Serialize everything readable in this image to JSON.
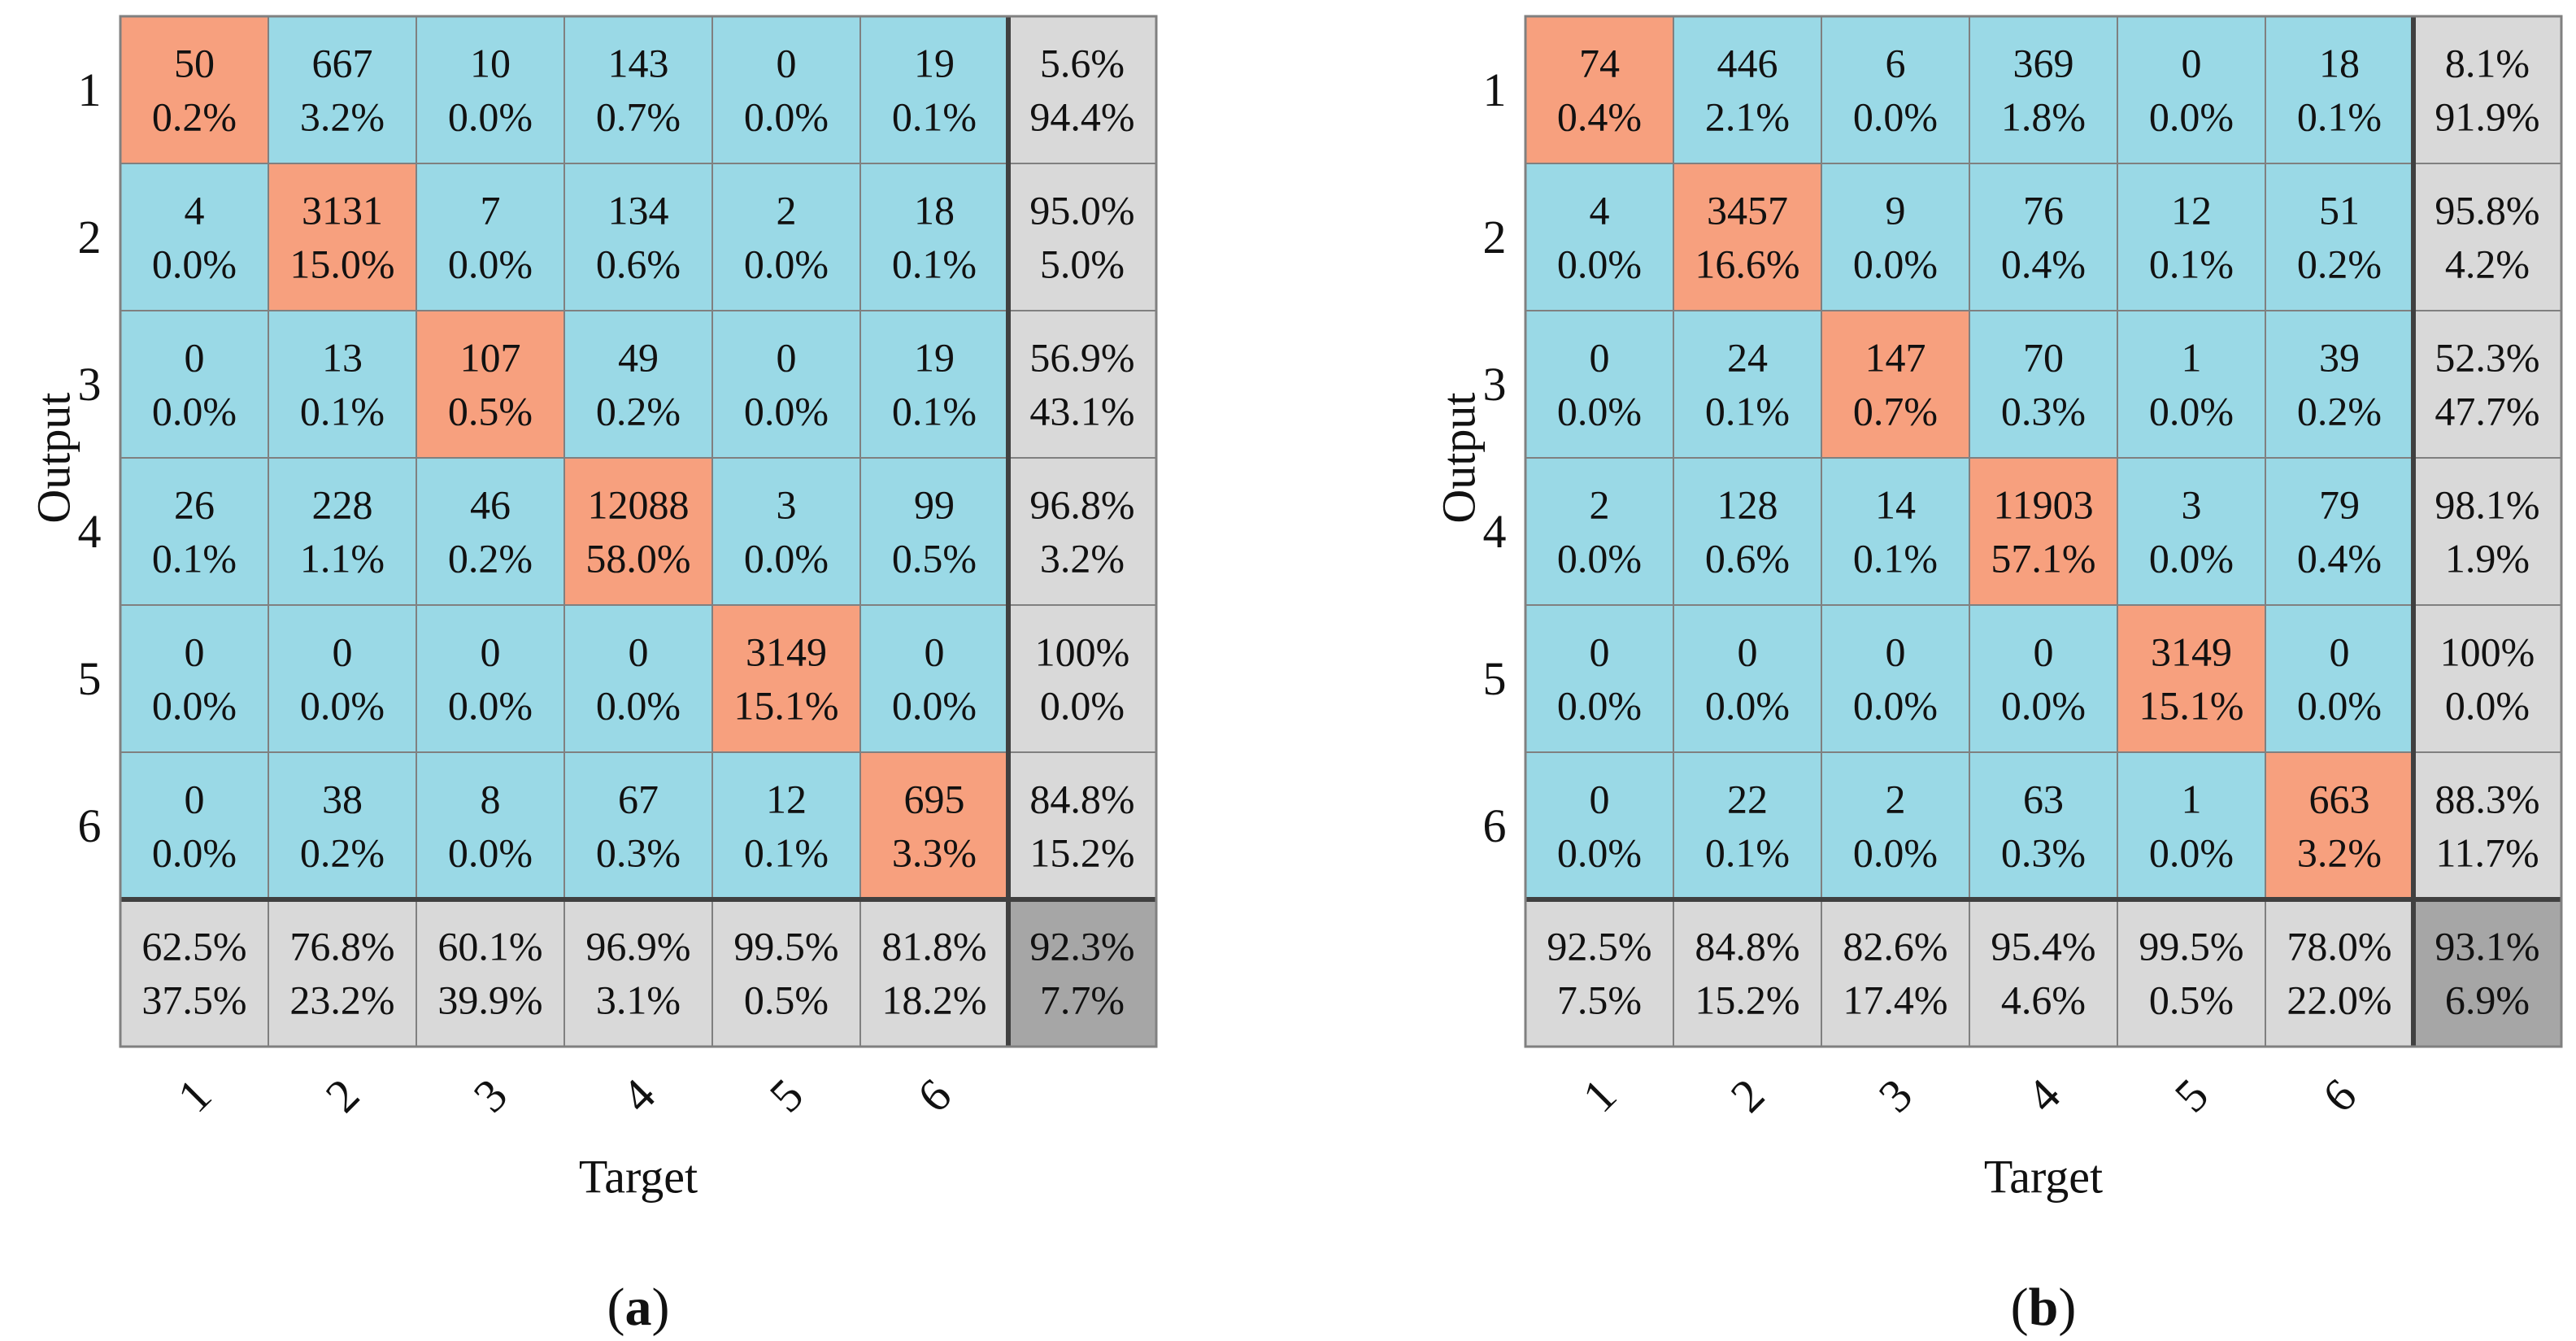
{
  "colors": {
    "diagonal": "#f7a07e",
    "off_diagonal": "#9ad9e6",
    "summary": "#d9d9d9",
    "overall": "#a6a6a6",
    "grid_line": "#808080",
    "thick_line": "#404040",
    "text": "#111111"
  },
  "chart_data": [
    {
      "type": "heatmap",
      "subtype": "confusion-matrix",
      "label": "(a)",
      "ylabel": "Output",
      "xlabel": "Target",
      "row_labels": [
        "1",
        "2",
        "3",
        "4",
        "5",
        "6"
      ],
      "col_labels": [
        "1",
        "2",
        "3",
        "4",
        "5",
        "6"
      ],
      "matrix": [
        [
          50,
          667,
          10,
          143,
          0,
          19
        ],
        [
          4,
          3131,
          7,
          134,
          2,
          18
        ],
        [
          0,
          13,
          107,
          49,
          0,
          19
        ],
        [
          26,
          228,
          46,
          12088,
          3,
          99
        ],
        [
          0,
          0,
          0,
          0,
          3149,
          0
        ],
        [
          0,
          38,
          8,
          67,
          12,
          695
        ]
      ],
      "matrix_percent": [
        [
          "0.2%",
          "3.2%",
          "0.0%",
          "0.7%",
          "0.0%",
          "0.1%"
        ],
        [
          "0.0%",
          "15.0%",
          "0.0%",
          "0.6%",
          "0.0%",
          "0.1%"
        ],
        [
          "0.0%",
          "0.1%",
          "0.5%",
          "0.2%",
          "0.0%",
          "0.1%"
        ],
        [
          "0.1%",
          "1.1%",
          "0.2%",
          "58.0%",
          "0.0%",
          "0.5%"
        ],
        [
          "0.0%",
          "0.0%",
          "0.0%",
          "0.0%",
          "15.1%",
          "0.0%"
        ],
        [
          "0.0%",
          "0.2%",
          "0.0%",
          "0.3%",
          "0.1%",
          "3.3%"
        ]
      ],
      "row_summary": [
        [
          "5.6%",
          "94.4%"
        ],
        [
          "95.0%",
          "5.0%"
        ],
        [
          "56.9%",
          "43.1%"
        ],
        [
          "96.8%",
          "3.2%"
        ],
        [
          "100%",
          "0.0%"
        ],
        [
          "84.8%",
          "15.2%"
        ]
      ],
      "col_summary": [
        [
          "62.5%",
          "37.5%"
        ],
        [
          "76.8%",
          "23.2%"
        ],
        [
          "60.1%",
          "39.9%"
        ],
        [
          "96.9%",
          "3.1%"
        ],
        [
          "99.5%",
          "0.5%"
        ],
        [
          "81.8%",
          "18.2%"
        ]
      ],
      "overall": [
        "92.3%",
        "7.7%"
      ]
    },
    {
      "type": "heatmap",
      "subtype": "confusion-matrix",
      "label": "(b)",
      "ylabel": "Output",
      "xlabel": "Target",
      "row_labels": [
        "1",
        "2",
        "3",
        "4",
        "5",
        "6"
      ],
      "col_labels": [
        "1",
        "2",
        "3",
        "4",
        "5",
        "6"
      ],
      "matrix": [
        [
          74,
          446,
          6,
          369,
          0,
          18
        ],
        [
          4,
          3457,
          9,
          76,
          12,
          51
        ],
        [
          0,
          24,
          147,
          70,
          1,
          39
        ],
        [
          2,
          128,
          14,
          11903,
          3,
          79
        ],
        [
          0,
          0,
          0,
          0,
          3149,
          0
        ],
        [
          0,
          22,
          2,
          63,
          1,
          663
        ]
      ],
      "matrix_percent": [
        [
          "0.4%",
          "2.1%",
          "0.0%",
          "1.8%",
          "0.0%",
          "0.1%"
        ],
        [
          "0.0%",
          "16.6%",
          "0.0%",
          "0.4%",
          "0.1%",
          "0.2%"
        ],
        [
          "0.0%",
          "0.1%",
          "0.7%",
          "0.3%",
          "0.0%",
          "0.2%"
        ],
        [
          "0.0%",
          "0.6%",
          "0.1%",
          "57.1%",
          "0.0%",
          "0.4%"
        ],
        [
          "0.0%",
          "0.0%",
          "0.0%",
          "0.0%",
          "15.1%",
          "0.0%"
        ],
        [
          "0.0%",
          "0.1%",
          "0.0%",
          "0.3%",
          "0.0%",
          "3.2%"
        ]
      ],
      "row_summary": [
        [
          "8.1%",
          "91.9%"
        ],
        [
          "95.8%",
          "4.2%"
        ],
        [
          "52.3%",
          "47.7%"
        ],
        [
          "98.1%",
          "1.9%"
        ],
        [
          "100%",
          "0.0%"
        ],
        [
          "88.3%",
          "11.7%"
        ]
      ],
      "col_summary": [
        [
          "92.5%",
          "7.5%"
        ],
        [
          "84.8%",
          "15.2%"
        ],
        [
          "82.6%",
          "17.4%"
        ],
        [
          "95.4%",
          "4.6%"
        ],
        [
          "99.5%",
          "0.5%"
        ],
        [
          "78.0%",
          "22.0%"
        ]
      ],
      "overall": [
        "93.1%",
        "6.9%"
      ]
    }
  ]
}
